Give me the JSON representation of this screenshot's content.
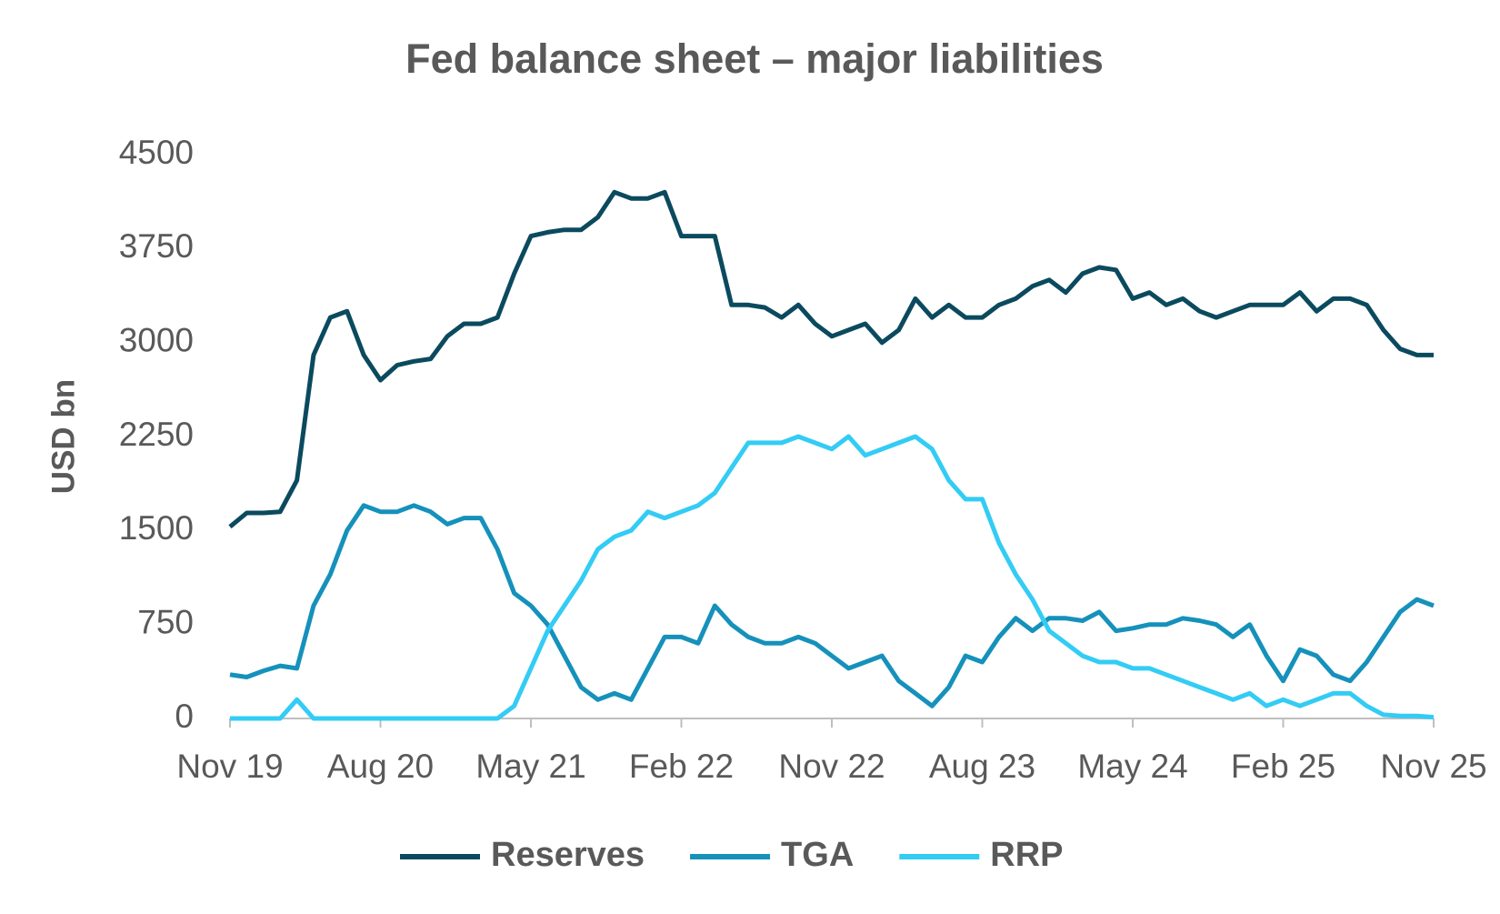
{
  "chart_data": {
    "type": "line",
    "title": "Fed balance sheet – major liabilities",
    "y_label": "USD bn",
    "x": [
      "2019-11",
      "2019-12",
      "2020-01",
      "2020-02",
      "2020-03",
      "2020-04",
      "2020-05",
      "2020-06",
      "2020-07",
      "2020-08",
      "2020-09",
      "2020-10",
      "2020-11",
      "2020-12",
      "2021-01",
      "2021-02",
      "2021-03",
      "2021-04",
      "2021-05",
      "2021-06",
      "2021-07",
      "2021-08",
      "2021-09",
      "2021-10",
      "2021-11",
      "2021-12",
      "2022-01",
      "2022-02",
      "2022-03",
      "2022-04",
      "2022-05",
      "2022-06",
      "2022-07",
      "2022-08",
      "2022-09",
      "2022-10",
      "2022-11",
      "2022-12",
      "2023-01",
      "2023-02",
      "2023-03",
      "2023-04",
      "2023-05",
      "2023-06",
      "2023-07",
      "2023-08",
      "2023-09",
      "2023-10",
      "2023-11",
      "2023-12",
      "2024-01",
      "2024-02",
      "2024-03",
      "2024-04",
      "2024-05",
      "2024-06",
      "2024-07",
      "2024-08",
      "2024-09",
      "2024-10",
      "2024-11",
      "2024-12",
      "2025-01",
      "2025-02",
      "2025-03",
      "2025-04",
      "2025-05",
      "2025-06",
      "2025-07",
      "2025-08",
      "2025-09",
      "2025-10",
      "2025-11"
    ],
    "series": [
      {
        "name": "Reserves",
        "color": "#0b4a5e",
        "values": [
          1530,
          1640,
          1640,
          1650,
          1900,
          2900,
          3200,
          3250,
          2900,
          2700,
          2820,
          2850,
          2870,
          3050,
          3150,
          3150,
          3200,
          3550,
          3850,
          3880,
          3900,
          3900,
          4000,
          4200,
          4150,
          4150,
          4200,
          3850,
          3850,
          3850,
          3300,
          3300,
          3280,
          3200,
          3300,
          3150,
          3050,
          3100,
          3150,
          3000,
          3100,
          3350,
          3200,
          3300,
          3200,
          3200,
          3300,
          3350,
          3450,
          3500,
          3400,
          3550,
          3600,
          3580,
          3350,
          3400,
          3300,
          3350,
          3250,
          3200,
          3250,
          3300,
          3300,
          3300,
          3400,
          3250,
          3350,
          3350,
          3300,
          3100,
          2950,
          2900,
          2900
        ]
      },
      {
        "name": "TGA",
        "color": "#1591bb",
        "values": [
          350,
          330,
          380,
          420,
          400,
          900,
          1150,
          1500,
          1700,
          1650,
          1650,
          1700,
          1650,
          1550,
          1600,
          1600,
          1350,
          1000,
          900,
          750,
          500,
          250,
          150,
          200,
          150,
          400,
          650,
          650,
          600,
          900,
          750,
          650,
          600,
          600,
          650,
          600,
          500,
          400,
          450,
          500,
          300,
          200,
          100,
          250,
          500,
          450,
          650,
          800,
          700,
          800,
          800,
          780,
          850,
          700,
          720,
          750,
          750,
          800,
          780,
          750,
          650,
          750,
          500,
          300,
          550,
          500,
          350,
          300,
          450,
          650,
          850,
          950,
          900
        ]
      },
      {
        "name": "RRP",
        "color": "#33ccf5",
        "values": [
          0,
          0,
          0,
          0,
          150,
          0,
          0,
          0,
          0,
          0,
          0,
          0,
          0,
          0,
          0,
          0,
          0,
          100,
          400,
          700,
          900,
          1100,
          1350,
          1450,
          1500,
          1650,
          1600,
          1650,
          1700,
          1800,
          2000,
          2200,
          2200,
          2200,
          2250,
          2200,
          2150,
          2250,
          2100,
          2150,
          2200,
          2250,
          2150,
          1900,
          1750,
          1750,
          1400,
          1150,
          950,
          700,
          600,
          500,
          450,
          450,
          400,
          400,
          350,
          300,
          250,
          200,
          150,
          200,
          100,
          150,
          100,
          150,
          200,
          200,
          100,
          30,
          20,
          20,
          10
        ]
      }
    ],
    "xlim": [
      "2019-11",
      "2025-11"
    ],
    "xticks": [
      {
        "value": "2019-11",
        "label": "Nov 19"
      },
      {
        "value": "2020-08",
        "label": "Aug 20"
      },
      {
        "value": "2021-05",
        "label": "May 21"
      },
      {
        "value": "2022-02",
        "label": "Feb 22"
      },
      {
        "value": "2022-11",
        "label": "Nov 22"
      },
      {
        "value": "2023-08",
        "label": "Aug 23"
      },
      {
        "value": "2024-05",
        "label": "May 24"
      },
      {
        "value": "2025-02",
        "label": "Feb 25"
      },
      {
        "value": "2025-11",
        "label": "Nov 25"
      }
    ],
    "ylim": [
      0,
      4500
    ],
    "yticks": [
      0,
      750,
      1500,
      2250,
      3000,
      3750,
      4500
    ],
    "grid": false,
    "legend": "bottom"
  }
}
